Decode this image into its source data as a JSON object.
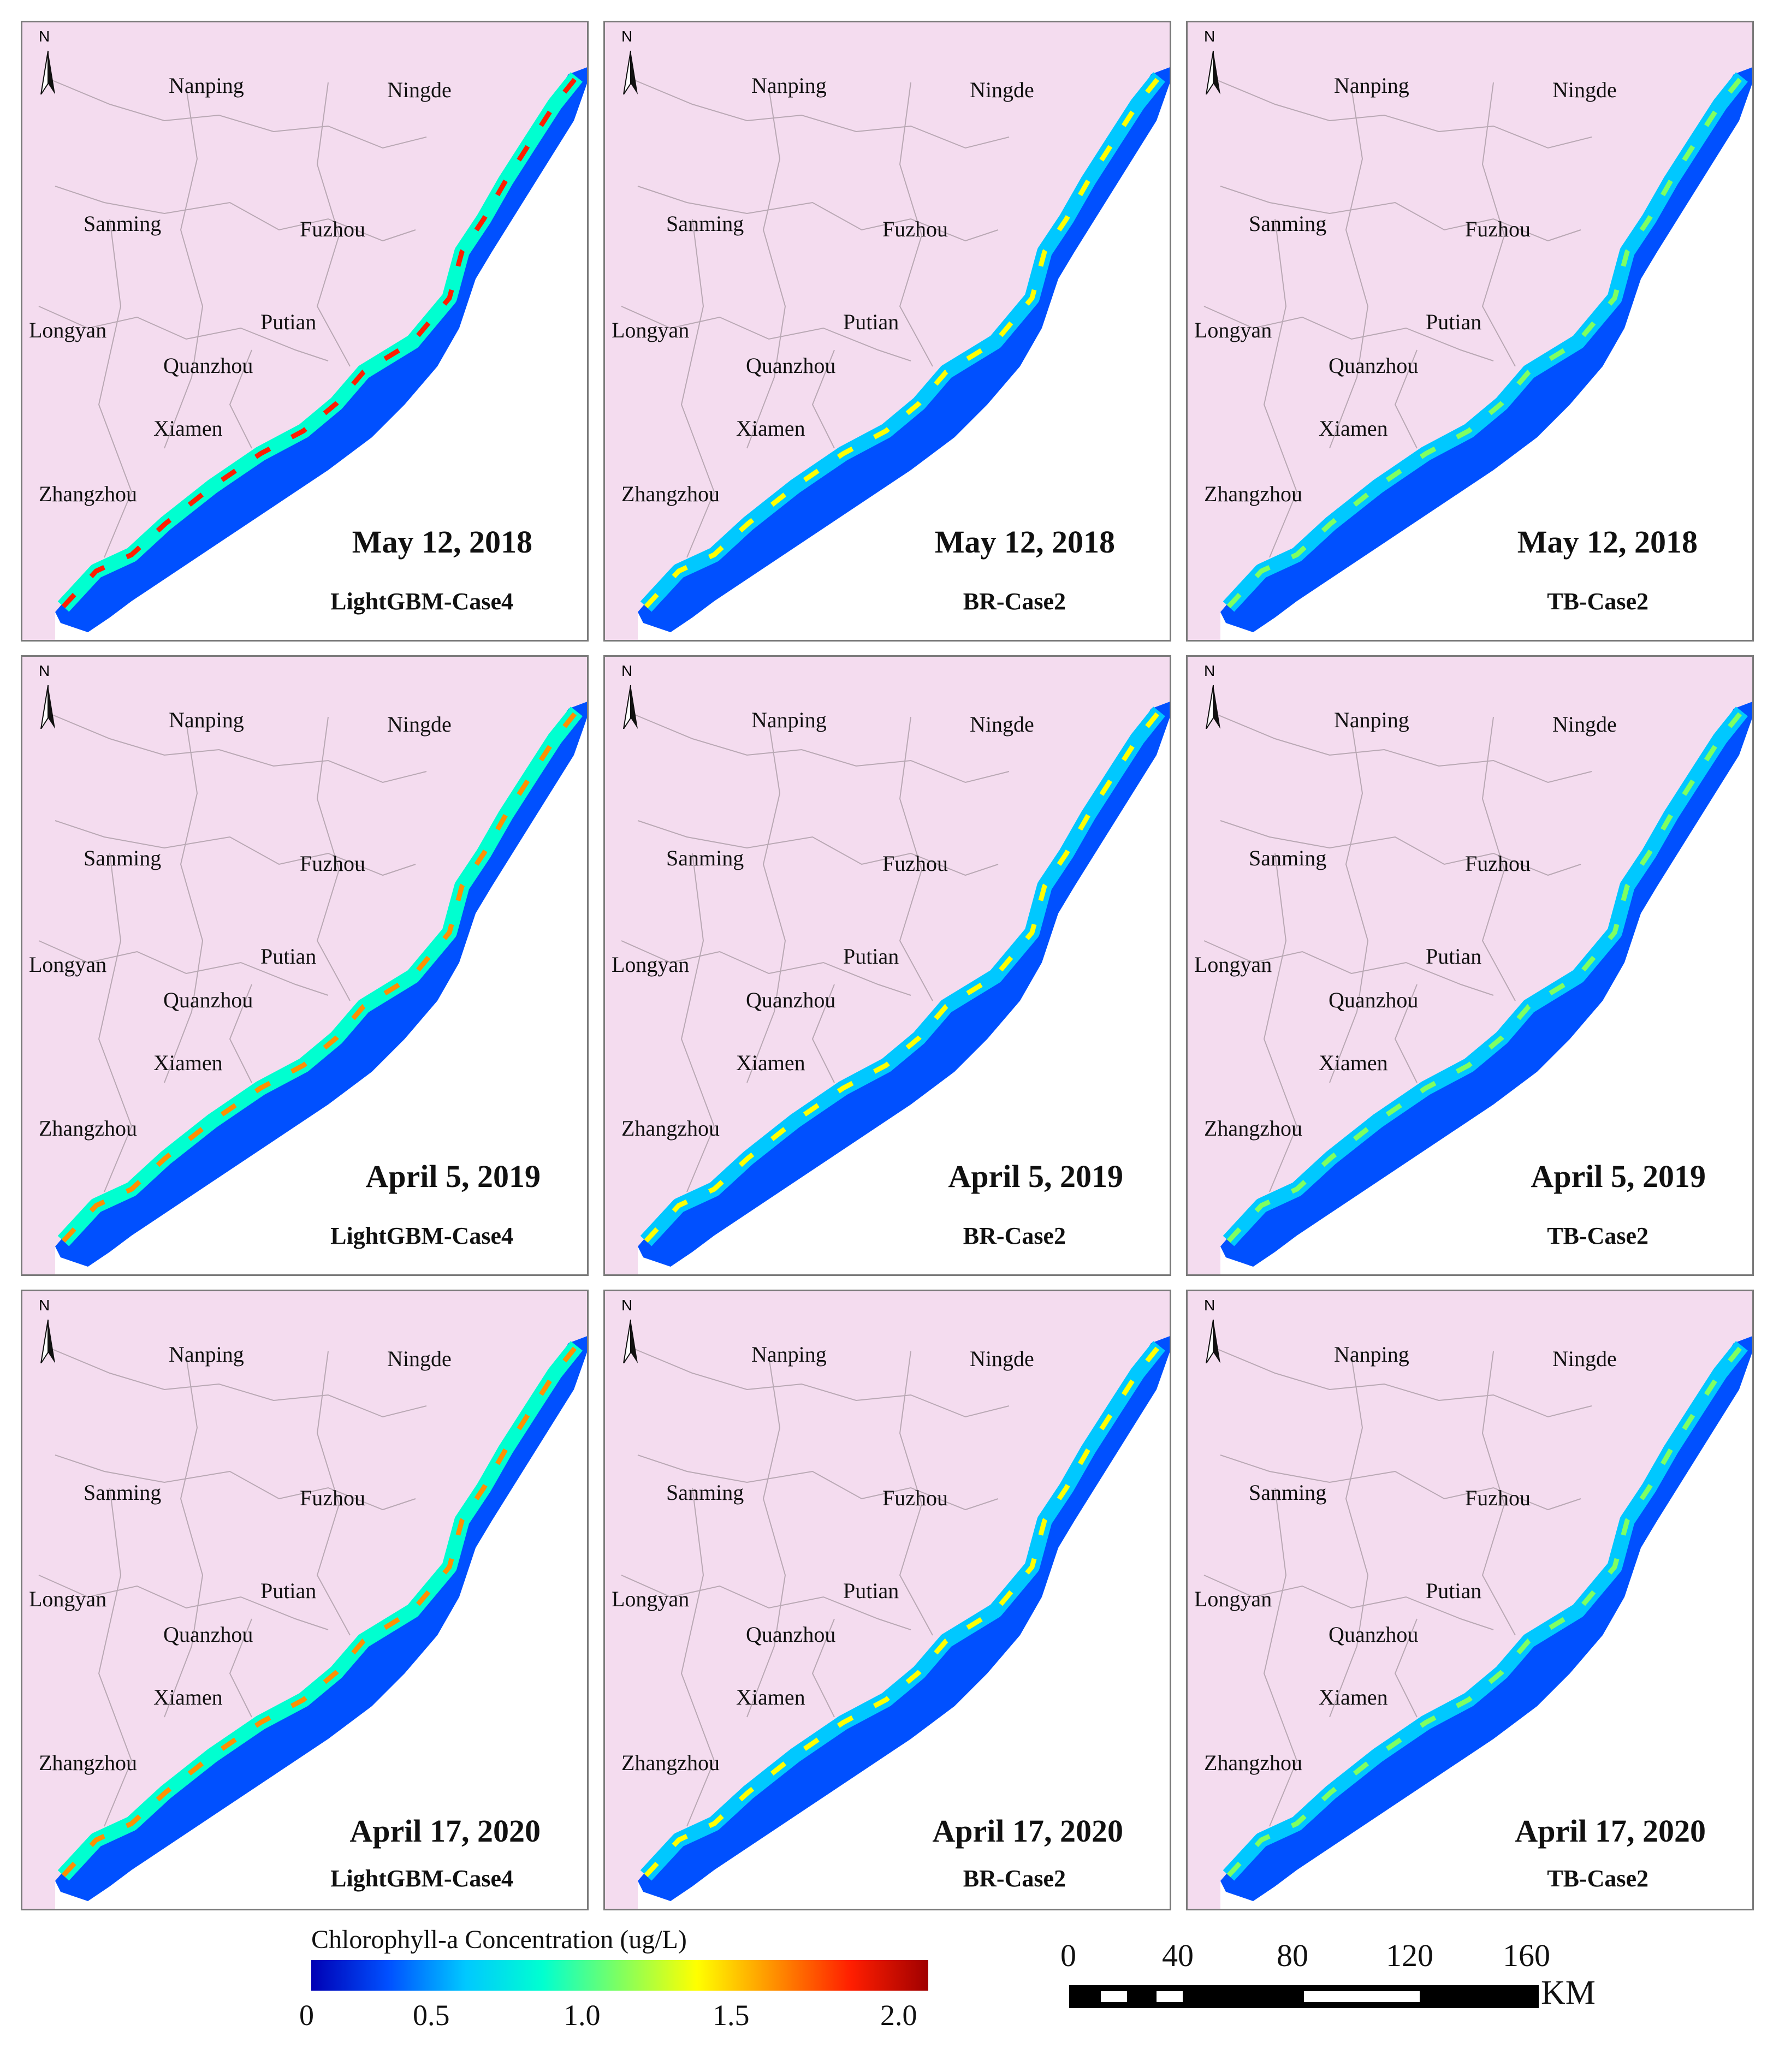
{
  "cities": [
    "Nanping",
    "Ningde",
    "Sanming",
    "Fuzhou",
    "Longyan",
    "Putian",
    "Quanzhou",
    "Xiamen",
    "Zhangzhou"
  ],
  "north_label": "N",
  "colors": {
    "land": "#f4dcef",
    "panel_border": "#7a7a7a",
    "boundary": "#b9a8b4"
  },
  "panels": [
    {
      "date": "May 12, 2018",
      "model": "LightGBM-Case4",
      "chl_level": 0.85
    },
    {
      "date": "May 12, 2018",
      "model": "BR-Case2",
      "chl_level": 0.6
    },
    {
      "date": "May 12, 2018",
      "model": "TB-Case2",
      "chl_level": 0.55
    },
    {
      "date": "April 5, 2019",
      "model": "LightGBM-Case4",
      "chl_level": 0.8
    },
    {
      "date": "April 5, 2019",
      "model": "BR-Case2",
      "chl_level": 0.6
    },
    {
      "date": "April 5, 2019",
      "model": "TB-Case2",
      "chl_level": 0.45
    },
    {
      "date": "April 17, 2020",
      "model": "LightGBM-Case4",
      "chl_level": 0.75
    },
    {
      "date": "April 17, 2020",
      "model": "BR-Case2",
      "chl_level": 0.6
    },
    {
      "date": "April 17, 2020",
      "model": "TB-Case2",
      "chl_level": 0.55
    }
  ],
  "legend": {
    "title": "Chlorophyll-a Concentration (ug/L)",
    "ticks": [
      "0",
      "0.5",
      "1.0",
      "1.5",
      "2.0"
    ],
    "min": 0,
    "max": 2.0,
    "colors": [
      "#0000b4",
      "#0050ff",
      "#00c8ff",
      "#00ffd0",
      "#7fff60",
      "#ffff00",
      "#ff9000",
      "#ff1e00",
      "#a00000"
    ]
  },
  "scalebar": {
    "ticks": [
      "0",
      "40",
      "80",
      "120",
      "160"
    ],
    "unit": "KM"
  }
}
